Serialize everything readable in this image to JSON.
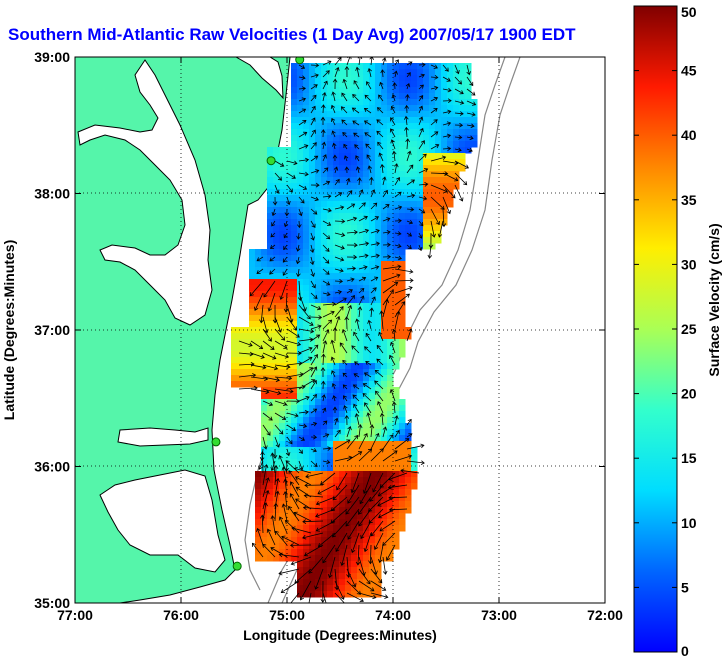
{
  "chart_data": {
    "type": "heatmap",
    "title": "Southern Mid-Atlantic Raw Velocities (1 Day Avg) 2007/05/17 1900 EDT",
    "xlabel": "Longitude (Degrees:Minutes)",
    "ylabel": "Latitude (Degrees:Minutes)",
    "xlim": [
      -77,
      -72
    ],
    "ylim": [
      35,
      39
    ],
    "x_ticks": [
      "77:00",
      "76:00",
      "75:00",
      "74:00",
      "73:00",
      "72:00"
    ],
    "y_ticks": [
      "39:00",
      "38:00",
      "37:00",
      "36:00",
      "35:00"
    ],
    "grid": true,
    "colorbar": {
      "label": "Surface Velocity (cm/s)",
      "range": [
        0,
        50
      ],
      "ticks": [
        "50",
        "45",
        "40",
        "35",
        "30",
        "25",
        "20",
        "15",
        "10",
        "5",
        "0"
      ],
      "colormap": "jet"
    },
    "sites": [
      {
        "lon": -74.88,
        "lat": 38.98
      },
      {
        "lon": -75.15,
        "lat": 38.24
      },
      {
        "lon": -75.67,
        "lat": 36.18
      },
      {
        "lon": -75.47,
        "lat": 35.27
      }
    ],
    "colors": {
      "land": "#55f5aa",
      "coast": "#000000",
      "bathymetry": "#888888",
      "title": "#0000ff"
    }
  }
}
